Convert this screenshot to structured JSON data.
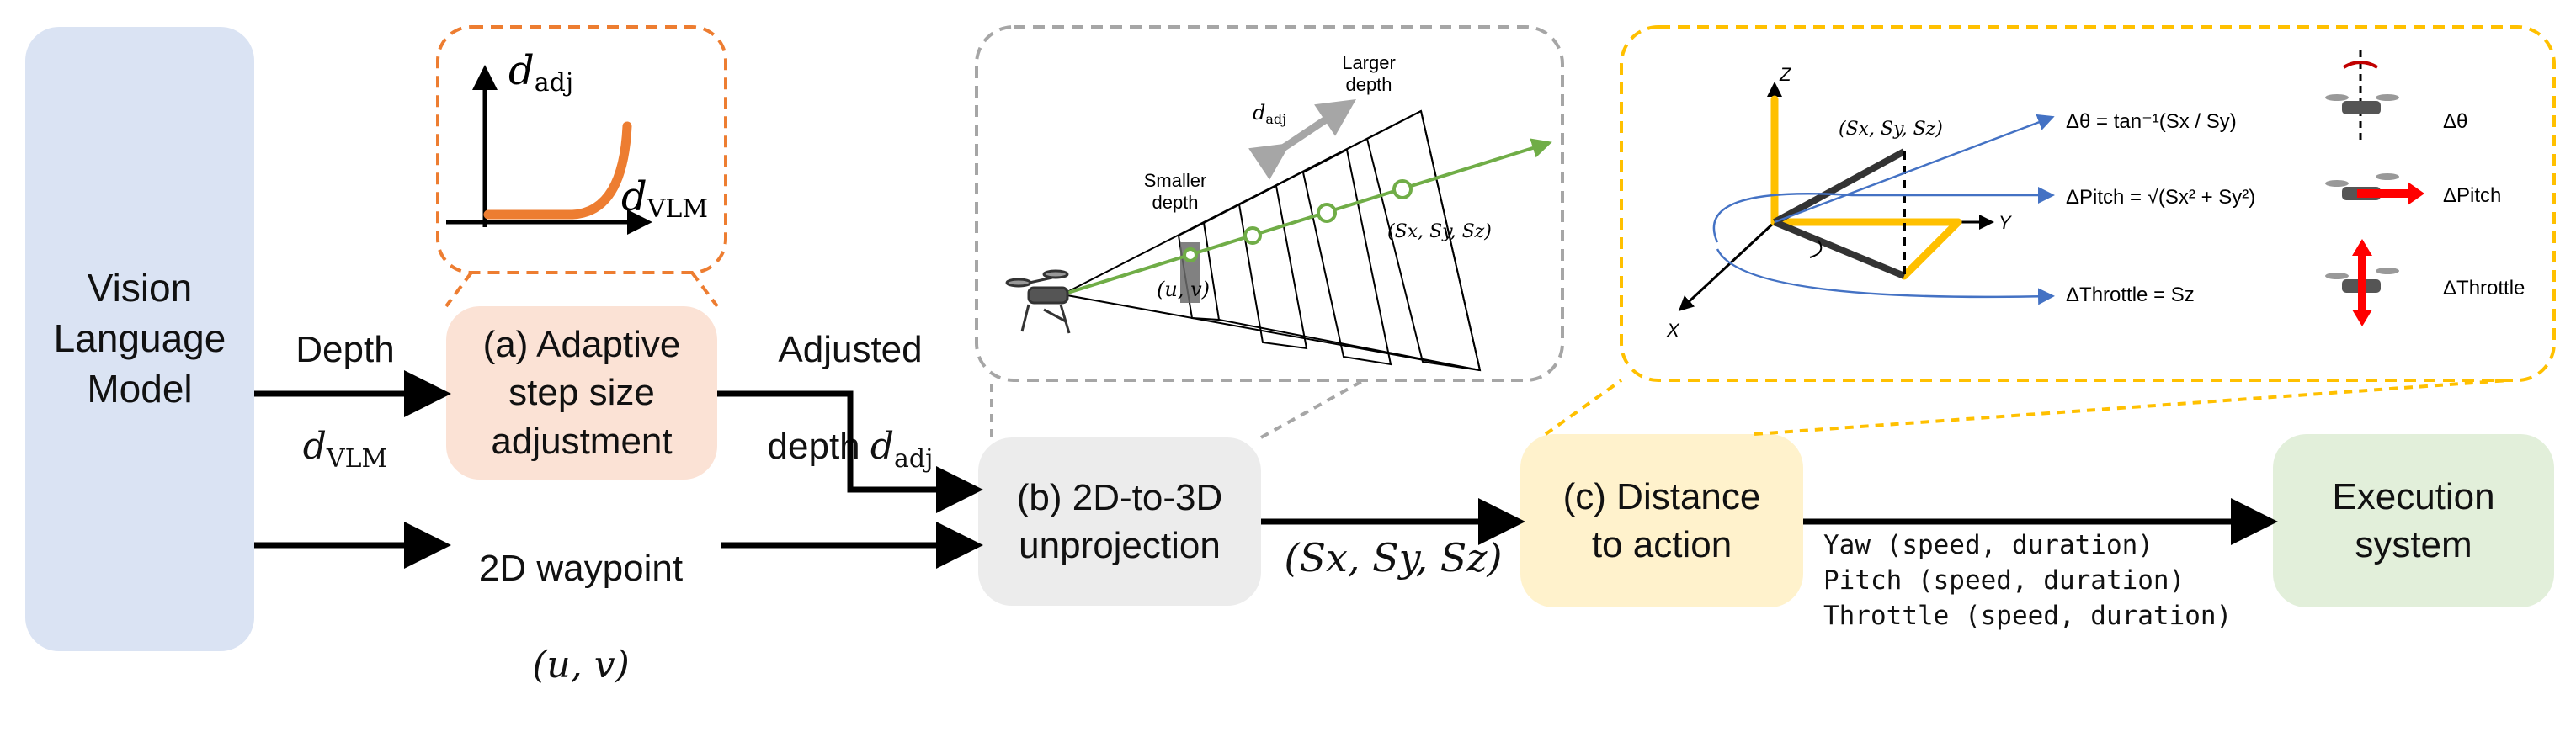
{
  "boxes": {
    "vlm": "Vision\nLanguage\nModel",
    "step": "(a) Adaptive\nstep size\nadjustment",
    "unproj": "(b) 2D-to-3D\nunprojection",
    "dist": "(c) Distance\nto action",
    "exec": "Execution\nsystem"
  },
  "labels": {
    "depth_word": "Depth",
    "depth_var": "d",
    "depth_sub": "VLM",
    "adj_word": "Adjusted",
    "adj_word2": "depth",
    "adj_var": "d",
    "adj_sub": "adj",
    "waypoint": "2D waypoint",
    "waypoint_uv": "(u, v)",
    "s_xyz": "(Sx, Sy, Sz)",
    "commands": [
      "Yaw (speed, duration)",
      "Pitch (speed, duration)",
      "Throttle (speed, duration)"
    ]
  },
  "inset_a": {
    "y_axis": "d",
    "y_sub": "adj",
    "x_axis": "d",
    "x_sub": "VLM"
  },
  "inset_b": {
    "larger_depth": [
      "Larger",
      "depth"
    ],
    "smaller_depth": [
      "Smaller",
      "depth"
    ],
    "d_adj": "d",
    "d_adj_sub": "adj",
    "uv": "(u, v)",
    "s": "(Sx, Sy, Sz)"
  },
  "inset_c": {
    "axis_z": "Z",
    "axis_y": "Y",
    "axis_x": "X",
    "point": "(Sx, Sy, Sz)",
    "eq_theta": "Δθ = tan⁻¹(Sx / Sy)",
    "eq_pitch": "ΔPitch = √(Sx² + Sy²)",
    "eq_throttle": "ΔThrottle = Sz",
    "act_theta": "Δθ",
    "act_pitch": "ΔPitch",
    "act_throttle": "ΔThrottle"
  },
  "colors": {
    "vlm": "#dae3f3",
    "step": "#fbe2d5",
    "unproj": "#ececec",
    "dist": "#fff2cc",
    "exec": "#e2efda",
    "orange": "#ed7d31",
    "gold": "#ffc000",
    "gray_dash": "#a6a6a6",
    "green": "#70ad47",
    "blue": "#4472c4",
    "red": "#ff0000"
  }
}
